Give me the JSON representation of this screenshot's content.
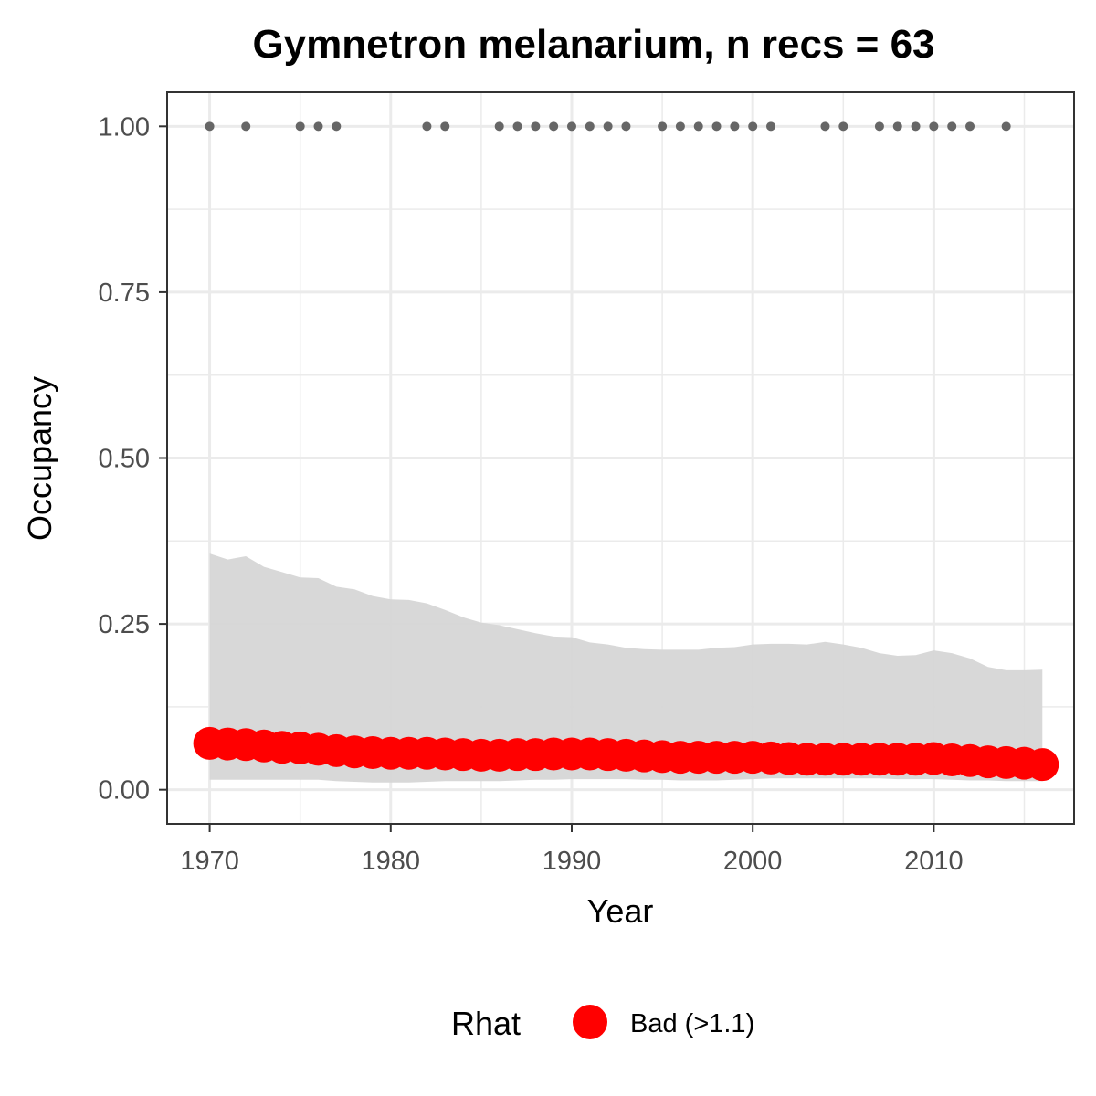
{
  "chart_data": {
    "type": "line",
    "title": "Gymnetron melanarium, n recs = 63",
    "xlabel": "Year",
    "ylabel": "Occupancy",
    "xlim": [
      1967.7,
      2017.7
    ],
    "ylim": [
      -0.05,
      1.05
    ],
    "x_ticks": [
      1970,
      1980,
      1990,
      2000,
      2010
    ],
    "x_tick_labels": [
      "1970",
      "1980",
      "1990",
      "2000",
      "2010"
    ],
    "y_ticks": [
      0,
      0.25,
      0.5,
      0.75,
      1.0
    ],
    "y_tick_labels": [
      "0.00",
      "0.25",
      "0.50",
      "0.75",
      "1.00"
    ],
    "grid": true,
    "colors": {
      "points": "#ff0000",
      "ribbon": "#d6d6d6",
      "records": "#666666",
      "grid": "#ebebeb"
    },
    "years": [
      1970,
      1971,
      1972,
      1973,
      1974,
      1975,
      1976,
      1977,
      1978,
      1979,
      1980,
      1981,
      1982,
      1983,
      1984,
      1985,
      1986,
      1987,
      1988,
      1989,
      1990,
      1991,
      1992,
      1993,
      1994,
      1995,
      1996,
      1997,
      1998,
      1999,
      2000,
      2001,
      2002,
      2003,
      2004,
      2005,
      2006,
      2007,
      2008,
      2009,
      2010,
      2011,
      2012,
      2013,
      2014,
      2015,
      2016
    ],
    "occupancy": [
      0.07,
      0.069,
      0.068,
      0.066,
      0.064,
      0.063,
      0.061,
      0.059,
      0.057,
      0.056,
      0.055,
      0.055,
      0.055,
      0.054,
      0.053,
      0.052,
      0.052,
      0.053,
      0.053,
      0.054,
      0.054,
      0.054,
      0.053,
      0.052,
      0.051,
      0.05,
      0.049,
      0.049,
      0.049,
      0.049,
      0.049,
      0.048,
      0.047,
      0.046,
      0.046,
      0.046,
      0.046,
      0.046,
      0.046,
      0.046,
      0.047,
      0.045,
      0.044,
      0.042,
      0.041,
      0.04,
      0.038
    ],
    "upper_ci": [
      0.356,
      0.347,
      0.352,
      0.336,
      0.328,
      0.32,
      0.319,
      0.306,
      0.302,
      0.292,
      0.287,
      0.286,
      0.281,
      0.271,
      0.26,
      0.252,
      0.248,
      0.242,
      0.236,
      0.231,
      0.23,
      0.222,
      0.219,
      0.214,
      0.212,
      0.211,
      0.211,
      0.211,
      0.214,
      0.215,
      0.219,
      0.22,
      0.22,
      0.219,
      0.223,
      0.219,
      0.214,
      0.206,
      0.202,
      0.203,
      0.21,
      0.206,
      0.198,
      0.185,
      0.18,
      0.18,
      0.181
    ],
    "lower_ci": [
      0.015,
      0.015,
      0.015,
      0.015,
      0.015,
      0.015,
      0.015,
      0.013,
      0.012,
      0.011,
      0.011,
      0.011,
      0.012,
      0.013,
      0.013,
      0.013,
      0.013,
      0.014,
      0.015,
      0.015,
      0.016,
      0.016,
      0.016,
      0.016,
      0.015,
      0.015,
      0.014,
      0.014,
      0.014,
      0.015,
      0.016,
      0.017,
      0.017,
      0.017,
      0.017,
      0.017,
      0.017,
      0.017,
      0.016,
      0.016,
      0.016,
      0.015,
      0.014,
      0.014,
      0.013,
      0.013,
      0.013
    ],
    "record_years": [
      1970,
      1972,
      1975,
      1976,
      1977,
      1982,
      1983,
      1986,
      1987,
      1988,
      1989,
      1990,
      1991,
      1992,
      1993,
      1995,
      1996,
      1997,
      1998,
      1999,
      2000,
      2001,
      2004,
      2005,
      2007,
      2008,
      2009,
      2010,
      2011,
      2012,
      2014
    ],
    "record_value": 1.0,
    "legend": {
      "title": "Rhat",
      "label": "Bad (>1.1)",
      "placement": "bottom"
    }
  }
}
